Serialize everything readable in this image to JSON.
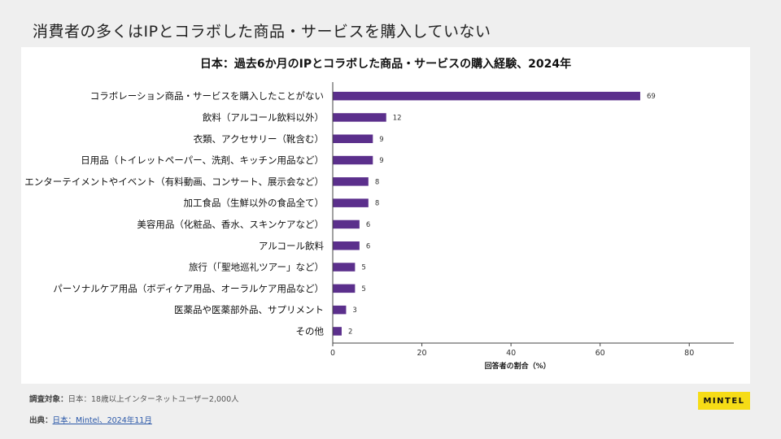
{
  "headline": "消費者の多くはIPとコラボした商品・サービスを購入していない",
  "footer": {
    "base_label": "調査対象：",
    "base_text": "日本：18歳以上インターネットユーザー2,000人",
    "source_label": "出典：",
    "source_text": "日本：Mintel、2024年11月"
  },
  "logo": "MINTEL",
  "colors": {
    "bar": "#5b2f8c",
    "background": "#efefef",
    "panel": "#ffffff",
    "logo": "#f6dc16"
  },
  "chart_data": {
    "type": "bar",
    "orientation": "horizontal",
    "title": "日本：過去6か月のIPとコラボした商品・サービスの購入経験、2024年",
    "xlabel": "回答者の割合（%）",
    "ylabel": "",
    "xlim": [
      0,
      90
    ],
    "xticks": [
      0,
      20,
      40,
      60,
      80
    ],
    "grid": false,
    "categories": [
      "コラボレーション商品・サービスを購入したことがない",
      "飲料（アルコール飲料以外）",
      "衣類、アクセサリー（靴含む）",
      "日用品（トイレットペーパー、洗剤、キッチン用品など）",
      "エンターテイメントやイベント（有料動画、コンサート、展示会など）",
      "加工食品（生鮮以外の食品全て）",
      "美容用品（化粧品、香水、スキンケアなど）",
      "アルコール飲料",
      "旅行（「聖地巡礼ツアー」など）",
      "パーソナルケア用品（ボディケア用品、オーラルケア用品など）",
      "医薬品や医薬部外品、サプリメント",
      "その他"
    ],
    "values": [
      69,
      12,
      9,
      9,
      8,
      8,
      6,
      6,
      5,
      5,
      3,
      2
    ]
  }
}
